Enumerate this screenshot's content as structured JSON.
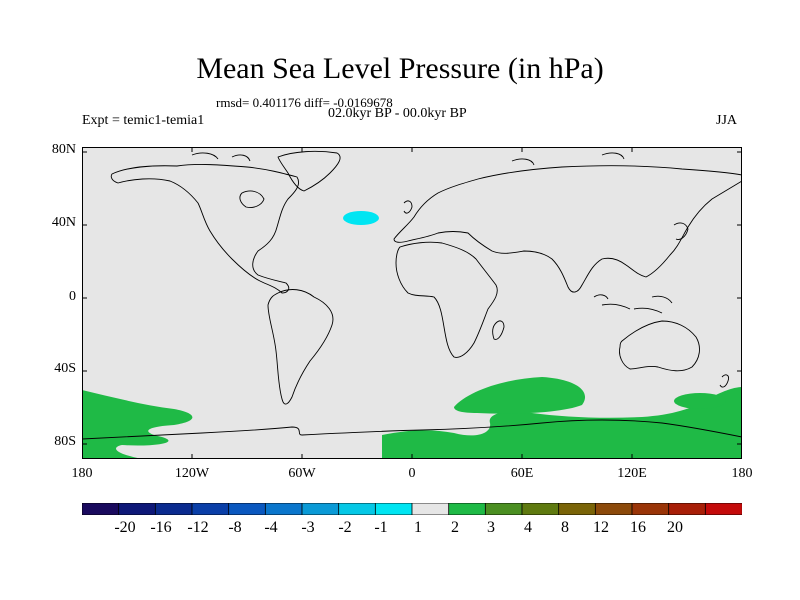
{
  "title": "Mean Sea Level Pressure (in hPa)",
  "stats": "rmsd= 0.401176 diff= -0.0169678",
  "period": "02.0kyr BP - 00.0kyr BP",
  "experiment": "Expt = temic1-temia1",
  "season": "JJA",
  "map": {
    "background_color": "#e6e6e6",
    "lat_labels": [
      "80N",
      "40N",
      "0",
      "40S",
      "80S"
    ],
    "lon_labels": [
      "180",
      "120W",
      "60W",
      "0",
      "60E",
      "120E",
      "180"
    ]
  },
  "colorbar": {
    "colors": [
      "#1a0a5e",
      "#0e1878",
      "#0a2b8f",
      "#0a3fa8",
      "#0a58bf",
      "#0a76cc",
      "#0a9ad6",
      "#05c8e6",
      "#00e5f2",
      "#e6e6e6",
      "#1fba46",
      "#4b8f22",
      "#5f7a10",
      "#7a6408",
      "#8c4a0a",
      "#9a3508",
      "#a81f08",
      "#c40a0a"
    ],
    "labels": [
      "-20",
      "-16",
      "-12",
      "-8",
      "-4",
      "-3",
      "-2",
      "-1",
      "1",
      "2",
      "3",
      "4",
      "8",
      "12",
      "16",
      "20"
    ]
  },
  "shading": [
    {
      "region": "north-atlantic",
      "color": "#00e5f2"
    },
    {
      "region": "southern-ocean",
      "color": "#1fba46"
    }
  ]
}
